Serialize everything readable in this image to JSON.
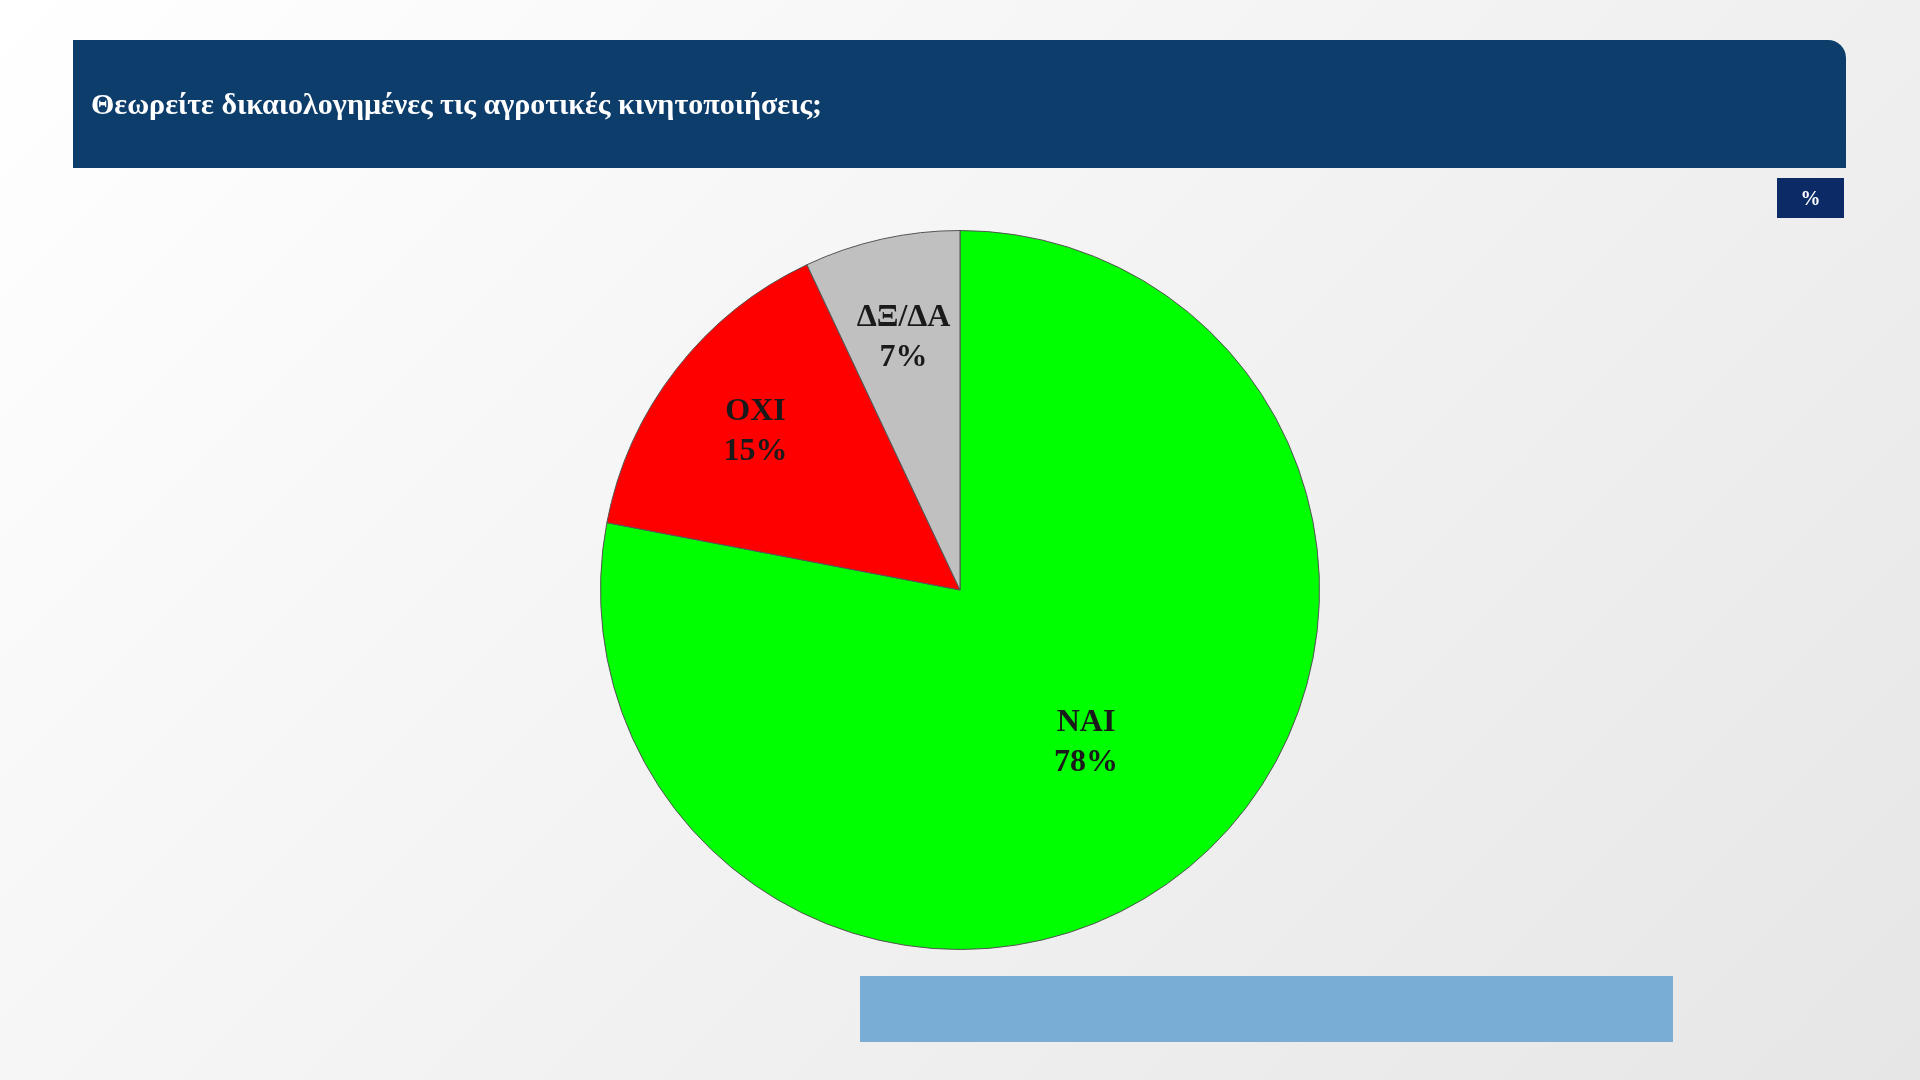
{
  "chart_data": {
    "type": "pie",
    "title": "Θεωρείτε δικαιολογημένες τις αγροτικές κινητοποιήσεις;",
    "categories": [
      "ΝΑΙ",
      "ΟΧΙ",
      "ΔΞ/ΔΑ"
    ],
    "values": [
      78,
      15,
      7
    ],
    "colors": [
      "#00ff00",
      "#ff0000",
      "#c0c0c0"
    ],
    "value_labels": [
      "78%",
      "15%",
      "7%"
    ],
    "annotations": [
      "%"
    ],
    "legend": false
  }
}
